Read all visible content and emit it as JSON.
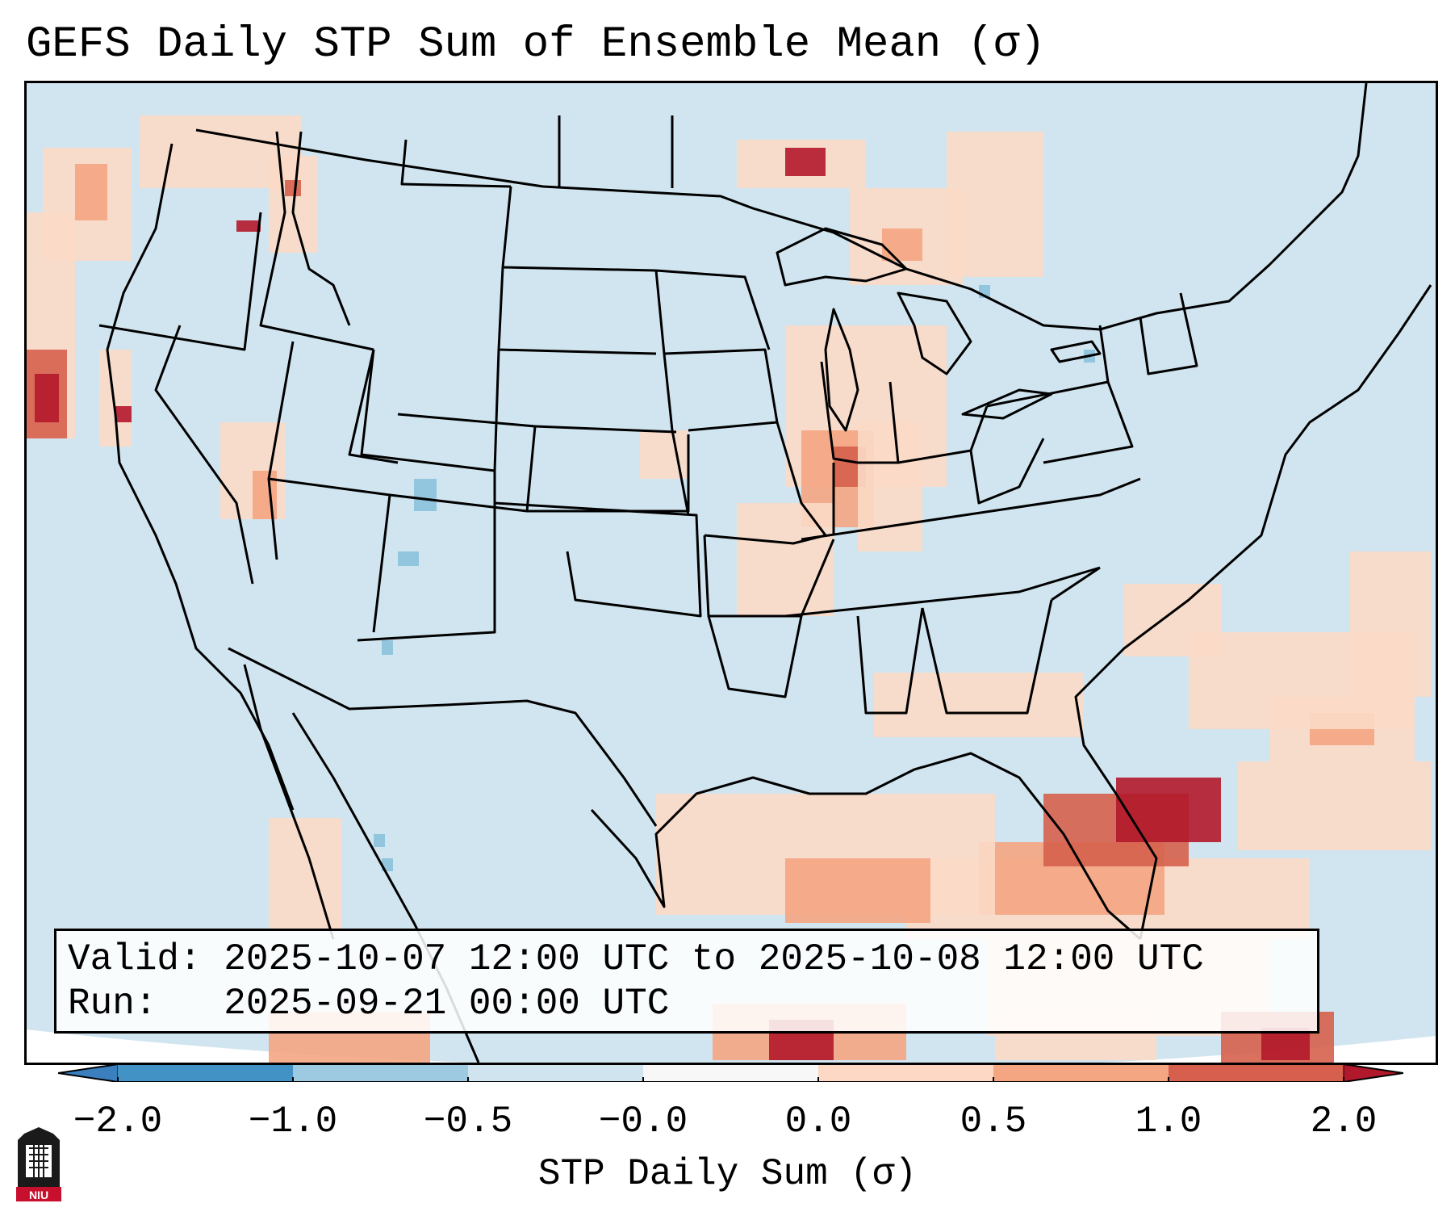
{
  "title": "GEFS Daily STP Sum of Ensemble Mean (σ)",
  "info": {
    "valid_line": "Valid: 2025-10-07 12:00 UTC to 2025-10-08 12:00 UTC",
    "run_line": "Run:   2025-09-21 00:00 UTC"
  },
  "colorbar": {
    "label": "STP Daily Sum (σ)",
    "ticks": [
      "−2.0",
      "−1.0",
      "−0.5",
      "−0.0",
      "0.0",
      "0.5",
      "1.0",
      "2.0"
    ],
    "colors": {
      "under": "#3b7fbf",
      "b1": "#4292c6",
      "b2": "#9ecae1",
      "b3": "#d0e4f0",
      "b4": "#f7f7f7",
      "b5": "#fdd8c4",
      "b6": "#f4a582",
      "b7": "#d6604d",
      "over": "#b2182b"
    }
  },
  "map": {
    "background_color": "#d1e5f0",
    "light_anomaly_color": "#fbdac6",
    "medium_anomaly_color": "#f4a582",
    "strong_anomaly_color": "#d6604d",
    "max_anomaly_color": "#b2182b",
    "negative_anomaly_color": "#92c5de"
  },
  "logo": {
    "text": "NIU",
    "color": "#c8102e"
  }
}
